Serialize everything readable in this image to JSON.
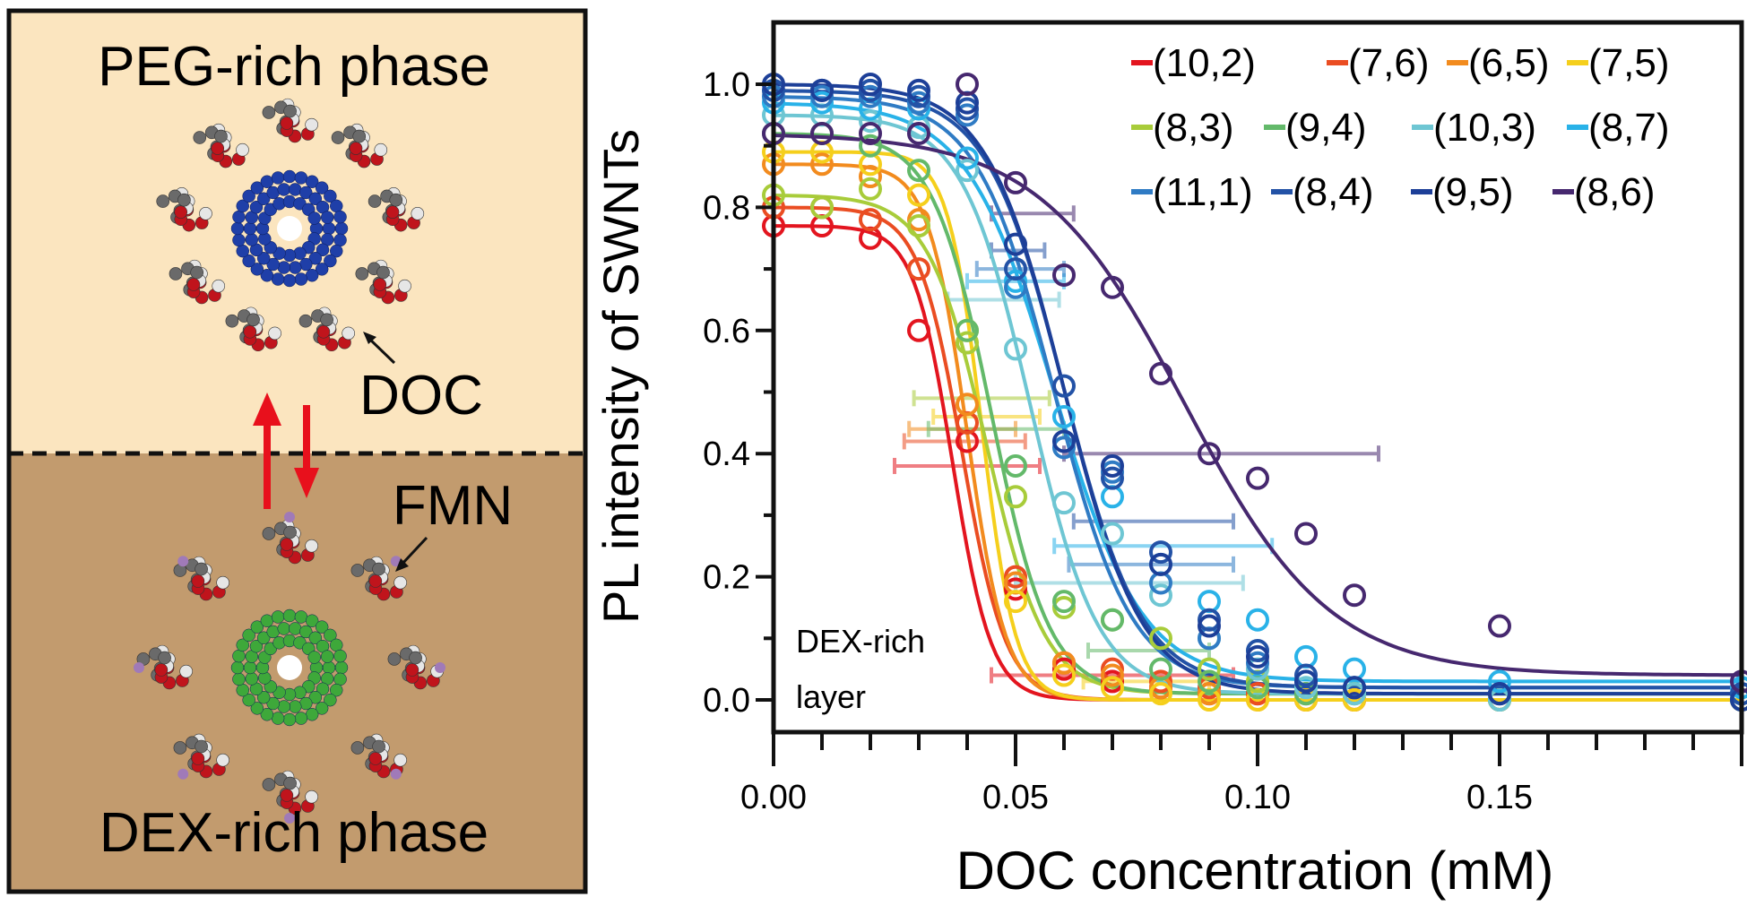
{
  "schematic": {
    "top_phase_label": "PEG-rich phase",
    "bottom_phase_label": "DEX-rich phase",
    "doc_label": "DOC",
    "fmn_label": "FMN",
    "colors": {
      "top": "#fbe5bf",
      "bottom": "#c29b6e",
      "arrow": "#e8101c",
      "tube_top": "#1f3fa8",
      "tube_bottom": "#3ea83a"
    }
  },
  "chart_data": {
    "type": "scatter",
    "xlabel": "DOC concentration (mM)",
    "ylabel": "PL intensity of SWNTs",
    "xlim": [
      0,
      0.2
    ],
    "ylim": [
      -0.05,
      1.1
    ],
    "xticks": [
      0.0,
      0.05,
      0.1,
      0.15
    ],
    "xtick_labels": [
      "0.00",
      "0.05",
      "0.10",
      "0.15"
    ],
    "yticks": [
      0.0,
      0.2,
      0.4,
      0.6,
      0.8,
      1.0
    ],
    "ytick_labels": [
      "0.0",
      "0.2",
      "0.4",
      "0.6",
      "0.8",
      "1.0"
    ],
    "annotation": [
      "DEX-rich",
      "layer"
    ],
    "legend_placement": "top-right",
    "x": [
      0,
      0.01,
      0.02,
      0.03,
      0.04,
      0.05,
      0.06,
      0.07,
      0.08,
      0.09,
      0.1,
      0.11,
      0.12,
      0.15,
      0.2
    ],
    "series": [
      {
        "name": "(10,2)",
        "color": "#e3151f",
        "values": [
          0.77,
          0.77,
          0.75,
          0.6,
          0.42,
          0.18,
          0.05,
          0.03,
          0.02,
          0.01,
          0.01,
          0,
          0,
          0,
          0
        ],
        "fit": {
          "top": 0.77,
          "bottom": 0.0,
          "x0": 0.037,
          "w": 0.004
        }
      },
      {
        "name": "(7,6)",
        "color": "#ea4d22",
        "values": [
          0.8,
          0.8,
          0.78,
          0.7,
          0.45,
          0.2,
          0.06,
          0.05,
          0.03,
          0.02,
          0.01,
          0.01,
          0,
          0,
          0
        ],
        "fit": {
          "top": 0.8,
          "bottom": 0.0,
          "x0": 0.039,
          "w": 0.0045
        }
      },
      {
        "name": "(6,5)",
        "color": "#f28b1e",
        "values": [
          0.87,
          0.87,
          0.85,
          0.78,
          0.48,
          0.19,
          0.06,
          0.04,
          0.02,
          0.01,
          0,
          0,
          0,
          0,
          0
        ],
        "fit": {
          "top": 0.87,
          "bottom": 0.0,
          "x0": 0.04,
          "w": 0.004
        }
      },
      {
        "name": "(7,5)",
        "color": "#f5cf1c",
        "values": [
          0.89,
          0.89,
          0.87,
          0.82,
          0.6,
          0.16,
          0.04,
          0.02,
          0.01,
          0,
          0,
          0,
          0,
          0,
          0
        ],
        "fit": {
          "top": 0.89,
          "bottom": 0.0,
          "x0": 0.043,
          "w": 0.0035
        }
      },
      {
        "name": "(8,3)",
        "color": "#a8cc3a",
        "values": [
          0.82,
          0.8,
          0.83,
          0.77,
          0.58,
          0.33,
          0.15,
          0.13,
          0.1,
          0.05,
          0.03,
          0.01,
          0.01,
          0,
          0
        ],
        "fit": {
          "top": 0.82,
          "bottom": 0.01,
          "x0": 0.044,
          "w": 0.006
        }
      },
      {
        "name": "(9,4)",
        "color": "#63b96a",
        "values": [
          0.92,
          0.92,
          0.9,
          0.86,
          0.6,
          0.38,
          0.16,
          0.13,
          0.05,
          0.03,
          0.02,
          0.01,
          0.01,
          0,
          0
        ],
        "fit": {
          "top": 0.92,
          "bottom": 0.01,
          "x0": 0.045,
          "w": 0.006
        }
      },
      {
        "name": "(10,3)",
        "color": "#6ec6d3",
        "values": [
          0.95,
          0.95,
          0.94,
          0.93,
          0.86,
          0.57,
          0.32,
          0.27,
          0.17,
          0.1,
          0.05,
          0.02,
          0.01,
          0,
          0
        ],
        "fit": {
          "top": 0.95,
          "bottom": 0.01,
          "x0": 0.053,
          "w": 0.007
        }
      },
      {
        "name": "(8,7)",
        "color": "#29b2e8",
        "values": [
          0.97,
          0.97,
          0.96,
          0.96,
          0.88,
          0.68,
          0.46,
          0.33,
          0.22,
          0.16,
          0.13,
          0.07,
          0.05,
          0.03,
          0.02
        ],
        "fit": {
          "top": 0.97,
          "bottom": 0.03,
          "x0": 0.058,
          "w": 0.009
        }
      },
      {
        "name": "(11,1)",
        "color": "#2f7bc4",
        "values": [
          0.98,
          0.98,
          0.98,
          0.97,
          0.95,
          0.67,
          0.41,
          0.37,
          0.19,
          0.1,
          0.06,
          0.03,
          0.02,
          0.01,
          0.01
        ],
        "fit": {
          "top": 0.98,
          "bottom": 0.02,
          "x0": 0.058,
          "w": 0.008
        }
      },
      {
        "name": "(8,4)",
        "color": "#2352a6",
        "values": [
          0.99,
          0.99,
          0.99,
          0.98,
          0.96,
          0.7,
          0.51,
          0.36,
          0.24,
          0.13,
          0.08,
          0.04,
          0.02,
          0.01,
          0.01
        ],
        "fit": {
          "top": 0.99,
          "bottom": 0.02,
          "x0": 0.06,
          "w": 0.008
        }
      },
      {
        "name": "(9,5)",
        "color": "#1d3f98",
        "values": [
          1.0,
          0.99,
          1.0,
          0.99,
          0.97,
          0.74,
          0.42,
          0.38,
          0.22,
          0.12,
          0.07,
          0.03,
          0.02,
          0.01,
          0.0
        ],
        "fit": {
          "top": 1.0,
          "bottom": 0.01,
          "x0": 0.06,
          "w": 0.008
        }
      },
      {
        "name": "(8,6)",
        "color": "#46286f",
        "values": [
          0.92,
          0.92,
          0.92,
          0.92,
          1.0,
          0.84,
          0.69,
          0.67,
          0.53,
          0.4,
          0.36,
          0.27,
          0.17,
          0.12,
          0.03
        ],
        "fit": {
          "top": 0.92,
          "bottom": 0.04,
          "x0": 0.085,
          "w": 0.015
        }
      }
    ],
    "x_error_bars": [
      {
        "series": 0,
        "y": 0.38,
        "xmin": 0.025,
        "xmax": 0.055
      },
      {
        "series": 0,
        "y": 0.04,
        "xmin": 0.045,
        "xmax": 0.095
      },
      {
        "series": 1,
        "y": 0.42,
        "xmin": 0.027,
        "xmax": 0.052
      },
      {
        "series": 2,
        "y": 0.44,
        "xmin": 0.028,
        "xmax": 0.05
      },
      {
        "series": 3,
        "y": 0.46,
        "xmin": 0.033,
        "xmax": 0.055
      },
      {
        "series": 3,
        "y": 0.03,
        "xmin": 0.064,
        "xmax": 0.09
      },
      {
        "series": 4,
        "y": 0.49,
        "xmin": 0.029,
        "xmax": 0.057
      },
      {
        "series": 5,
        "y": 0.44,
        "xmin": 0.032,
        "xmax": 0.06
      },
      {
        "series": 5,
        "y": 0.08,
        "xmin": 0.065,
        "xmax": 0.09
      },
      {
        "series": 6,
        "y": 0.65,
        "xmin": 0.036,
        "xmax": 0.059
      },
      {
        "series": 6,
        "y": 0.19,
        "xmin": 0.05,
        "xmax": 0.097
      },
      {
        "series": 7,
        "y": 0.68,
        "xmin": 0.04,
        "xmax": 0.06
      },
      {
        "series": 7,
        "y": 0.25,
        "xmin": 0.058,
        "xmax": 0.103
      },
      {
        "series": 8,
        "y": 0.7,
        "xmin": 0.042,
        "xmax": 0.06
      },
      {
        "series": 8,
        "y": 0.22,
        "xmin": 0.061,
        "xmax": 0.095
      },
      {
        "series": 9,
        "y": 0.73,
        "xmin": 0.045,
        "xmax": 0.056
      },
      {
        "series": 9,
        "y": 0.29,
        "xmin": 0.062,
        "xmax": 0.095
      },
      {
        "series": 11,
        "y": 0.79,
        "xmin": 0.045,
        "xmax": 0.062
      },
      {
        "series": 11,
        "y": 0.4,
        "xmin": 0.06,
        "xmax": 0.125
      }
    ]
  }
}
